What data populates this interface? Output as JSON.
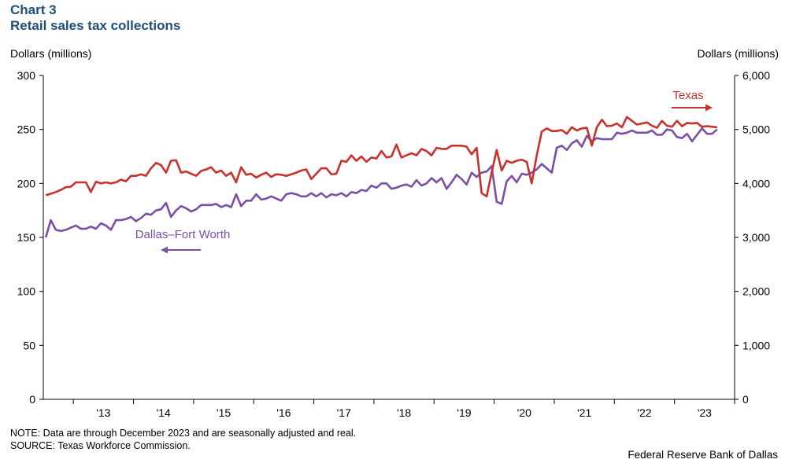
{
  "header": {
    "chart_number": "Chart 3",
    "title": "Retail sales tax collections"
  },
  "axes": {
    "left_unit": "Dollars (millions)",
    "right_unit": "Dollars (millions)"
  },
  "footer": {
    "note": "NOTE: Data are through December 2023 and are seasonally adjusted and real.",
    "source": "SOURCE: Texas Workforce Commission.",
    "credit": "Federal Reserve Bank of Dallas"
  },
  "colors": {
    "texas": "#c8312c",
    "dfw": "#7a4fa6",
    "title": "#1f4e79"
  },
  "chart_data": {
    "type": "line",
    "title": "Retail sales tax collections",
    "x_start": "2012-07",
    "x_end": "2023-12",
    "x_tick_labels": [
      "'13",
      "'14",
      "'15",
      "'16",
      "'17",
      "'18",
      "'19",
      "'20",
      "'21",
      "'22",
      "'23"
    ],
    "y_left": {
      "label": "Dollars (millions)",
      "min": 0,
      "max": 300,
      "ticks": [
        0,
        50,
        100,
        150,
        200,
        250,
        300
      ],
      "tick_labels": [
        "0",
        "50",
        "100",
        "150",
        "200",
        "250",
        "300"
      ]
    },
    "y_right": {
      "label": "Dollars (millions)",
      "min": 0,
      "max": 6000,
      "ticks": [
        0,
        1000,
        2000,
        3000,
        4000,
        5000,
        6000
      ],
      "tick_labels": [
        "0",
        "1,000",
        "2,000",
        "3,000",
        "4,000",
        "5,000",
        "6,000"
      ]
    },
    "series": [
      {
        "name": "Dallas–Fort Worth",
        "label": "Dallas–Fort Worth",
        "axis": "left",
        "arrow": "left",
        "start": "2012-07",
        "values": [
          150,
          166,
          157,
          156,
          157,
          159,
          161,
          158,
          158,
          160,
          158,
          163,
          161,
          157,
          166,
          166,
          167,
          169,
          165,
          168,
          172,
          171,
          175,
          176,
          182,
          169,
          175,
          179,
          177,
          174,
          176,
          180,
          180,
          180,
          181,
          178,
          180,
          178,
          190,
          179,
          184,
          184,
          190,
          185,
          186,
          188,
          186,
          184,
          190,
          191,
          190,
          188,
          188,
          191,
          188,
          191,
          187,
          190,
          189,
          191,
          188,
          192,
          191,
          194,
          193,
          198,
          196,
          200,
          200,
          195,
          196,
          198,
          199,
          197,
          203,
          198,
          200,
          205,
          201,
          205,
          195,
          201,
          208,
          204,
          199,
          210,
          206,
          210,
          211,
          216,
          183,
          181,
          202,
          207,
          201,
          209,
          208,
          210,
          213,
          218,
          214,
          210,
          233,
          235,
          231,
          237,
          240,
          234,
          244,
          239,
          242,
          241,
          241,
          241,
          247,
          246,
          247,
          249,
          247,
          247,
          247,
          249,
          245,
          245,
          250,
          249,
          243,
          242,
          246,
          239,
          245,
          251,
          246,
          246,
          250
        ]
      },
      {
        "name": "Texas",
        "label": "Texas",
        "axis": "right",
        "arrow": "right",
        "start": "2012-07",
        "values": [
          3780,
          3810,
          3840,
          3880,
          3930,
          3940,
          4020,
          4020,
          4020,
          3840,
          4030,
          4000,
          4020,
          4000,
          4020,
          4070,
          4040,
          4140,
          4140,
          4170,
          4140,
          4280,
          4380,
          4340,
          4200,
          4420,
          4430,
          4200,
          4220,
          4180,
          4140,
          4230,
          4260,
          4300,
          4200,
          4240,
          4140,
          4200,
          4020,
          4300,
          4160,
          4180,
          4110,
          4160,
          4200,
          4120,
          4170,
          4160,
          4140,
          4170,
          4200,
          4240,
          4260,
          4080,
          4180,
          4280,
          4280,
          4170,
          4180,
          4420,
          4400,
          4520,
          4420,
          4500,
          4400,
          4480,
          4460,
          4600,
          4480,
          4500,
          4720,
          4480,
          4520,
          4560,
          4520,
          4640,
          4600,
          4520,
          4660,
          4640,
          4640,
          4700,
          4700,
          4700,
          4680,
          4540,
          4660,
          3820,
          3760,
          4200,
          4620,
          4240,
          4420,
          4380,
          4420,
          4440,
          4400,
          4000,
          4520,
          4960,
          5020,
          4970,
          4970,
          4990,
          4920,
          5040,
          4980,
          5020,
          5030,
          4700,
          5040,
          5180,
          5060,
          5070,
          5110,
          5040,
          5230,
          5160,
          5090,
          5110,
          5130,
          5070,
          5030,
          5160,
          5070,
          5050,
          5160,
          5060,
          5120,
          5110,
          5120,
          5050,
          5060,
          5050,
          5040
        ]
      }
    ]
  }
}
